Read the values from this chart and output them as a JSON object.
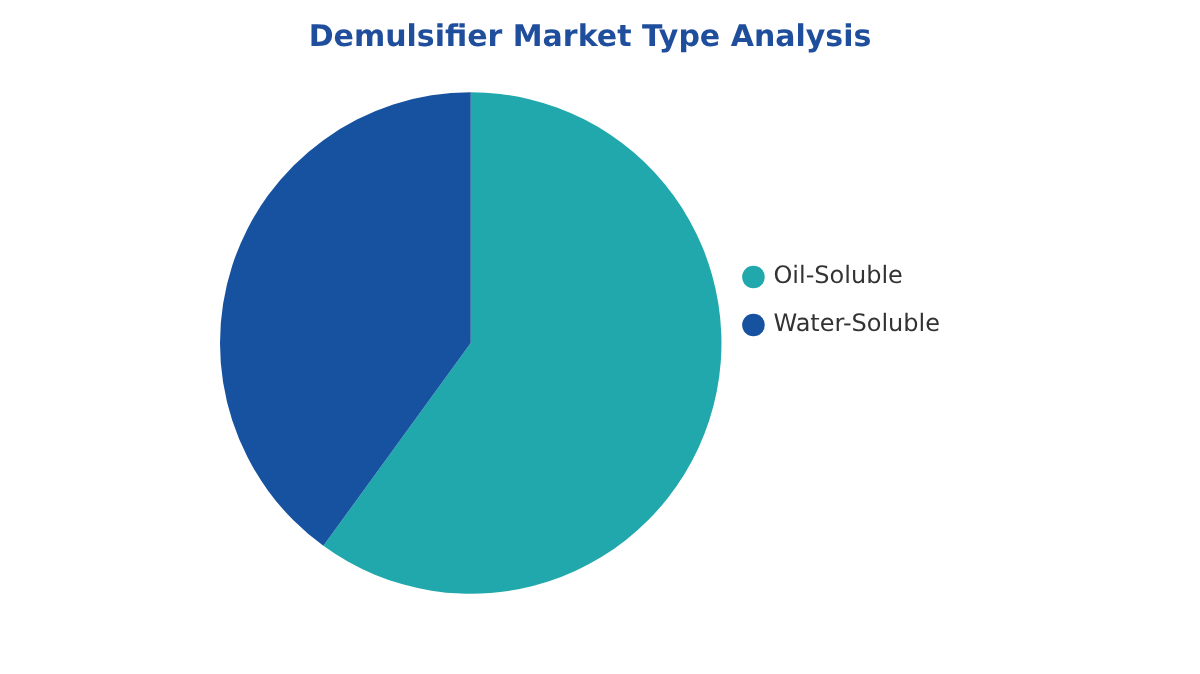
{
  "chart_data": {
    "type": "pie",
    "title": "Demulsifier Market Type Analysis",
    "categories": [
      "Oil-Soluble",
      "Water-Soluble"
    ],
    "values": [
      60,
      40
    ],
    "colors": [
      "#20a8ac",
      "#16529f"
    ],
    "legend": "right"
  }
}
